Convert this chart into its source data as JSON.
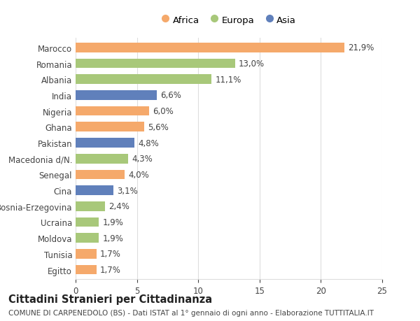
{
  "countries": [
    "Marocco",
    "Romania",
    "Albania",
    "India",
    "Nigeria",
    "Ghana",
    "Pakistan",
    "Macedonia d/N.",
    "Senegal",
    "Cina",
    "Bosnia-Erzegovina",
    "Ucraina",
    "Moldova",
    "Tunisia",
    "Egitto"
  ],
  "values": [
    21.9,
    13.0,
    11.1,
    6.6,
    6.0,
    5.6,
    4.8,
    4.3,
    4.0,
    3.1,
    2.4,
    1.9,
    1.9,
    1.7,
    1.7
  ],
  "labels": [
    "21,9%",
    "13,0%",
    "11,1%",
    "6,6%",
    "6,0%",
    "5,6%",
    "4,8%",
    "4,3%",
    "4,0%",
    "3,1%",
    "2,4%",
    "1,9%",
    "1,9%",
    "1,7%",
    "1,7%"
  ],
  "continents": [
    "Africa",
    "Europa",
    "Europa",
    "Asia",
    "Africa",
    "Africa",
    "Asia",
    "Europa",
    "Africa",
    "Asia",
    "Europa",
    "Europa",
    "Europa",
    "Africa",
    "Africa"
  ],
  "colors": {
    "Africa": "#F5A96B",
    "Europa": "#A8C87A",
    "Asia": "#6080BB"
  },
  "title": "Cittadini Stranieri per Cittadinanza",
  "subtitle": "COMUNE DI CARPENEDOLO (BS) - Dati ISTAT al 1° gennaio di ogni anno - Elaborazione TUTTITALIA.IT",
  "xlim": [
    0,
    25
  ],
  "xticks": [
    0,
    5,
    10,
    15,
    20,
    25
  ],
  "background_color": "#ffffff",
  "bar_height": 0.6,
  "grid_color": "#dddddd",
  "text_color": "#444444",
  "label_fontsize": 8.5,
  "tick_fontsize": 8.5,
  "title_fontsize": 10.5,
  "subtitle_fontsize": 7.5
}
